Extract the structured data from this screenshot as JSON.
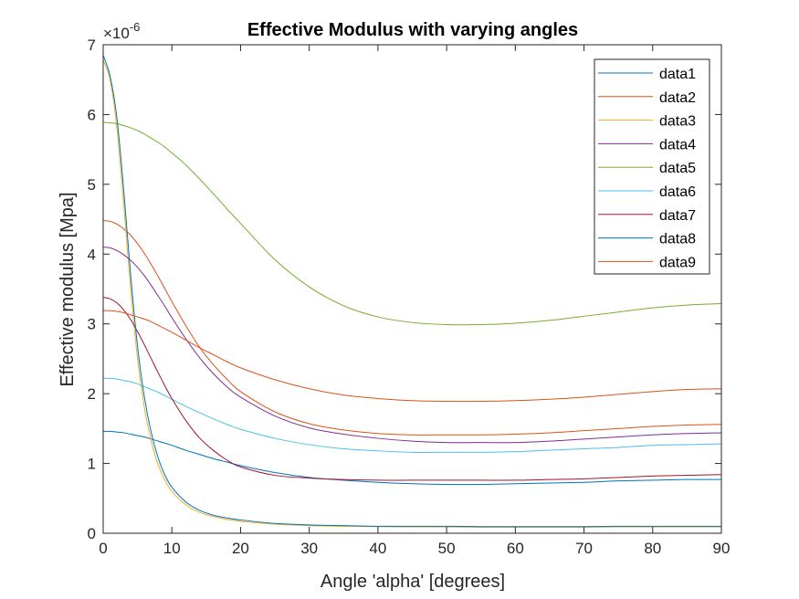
{
  "chart_data": {
    "type": "line",
    "title": "Effective Modulus with varying angles",
    "xlabel": "Angle 'alpha' [degrees]",
    "ylabel": "Effective modulus [Mpa]",
    "xlim": [
      0,
      90
    ],
    "ylim": [
      0,
      7
    ],
    "y_exponent": "×10",
    "y_exponent_power": "-6",
    "x_ticks": [
      "0",
      "10",
      "20",
      "30",
      "40",
      "50",
      "60",
      "70",
      "80",
      "90"
    ],
    "y_ticks": [
      "0",
      "1",
      "2",
      "3",
      "4",
      "5",
      "6",
      "7"
    ],
    "grid": false,
    "legend_position": "top-right",
    "x": [
      0,
      1,
      2,
      3,
      4,
      5,
      6,
      7,
      8,
      9,
      10,
      12,
      14,
      16,
      18,
      20,
      25,
      30,
      35,
      40,
      45,
      50,
      55,
      60,
      65,
      70,
      75,
      80,
      85,
      90
    ],
    "y_scale": 1e-06,
    "series": [
      {
        "name": "data1",
        "color": "#0072BD",
        "values": [
          1.46,
          1.46,
          1.45,
          1.44,
          1.42,
          1.4,
          1.38,
          1.35,
          1.32,
          1.29,
          1.26,
          1.19,
          1.13,
          1.07,
          1.02,
          0.97,
          0.87,
          0.8,
          0.76,
          0.73,
          0.71,
          0.7,
          0.7,
          0.71,
          0.72,
          0.73,
          0.75,
          0.76,
          0.77,
          0.77
        ]
      },
      {
        "name": "data2",
        "color": "#D95319",
        "values": [
          4.48,
          4.47,
          4.43,
          4.36,
          4.27,
          4.15,
          4.01,
          3.85,
          3.68,
          3.5,
          3.32,
          2.98,
          2.67,
          2.42,
          2.21,
          2.03,
          1.74,
          1.57,
          1.48,
          1.43,
          1.41,
          1.41,
          1.41,
          1.42,
          1.44,
          1.47,
          1.5,
          1.53,
          1.55,
          1.56
        ]
      },
      {
        "name": "data3",
        "color": "#EDB120",
        "values": [
          6.78,
          6.5,
          5.8,
          4.7,
          3.5,
          2.5,
          1.8,
          1.32,
          0.98,
          0.76,
          0.6,
          0.41,
          0.3,
          0.24,
          0.2,
          0.17,
          0.13,
          0.11,
          0.1,
          0.095,
          0.09,
          0.09,
          0.085,
          0.085,
          0.085,
          0.085,
          0.09,
          0.09,
          0.09,
          0.09
        ]
      },
      {
        "name": "data4",
        "color": "#7E2F8E",
        "values": [
          4.1,
          4.09,
          4.05,
          3.99,
          3.91,
          3.81,
          3.69,
          3.55,
          3.4,
          3.25,
          3.09,
          2.79,
          2.52,
          2.29,
          2.1,
          1.95,
          1.68,
          1.51,
          1.42,
          1.36,
          1.32,
          1.3,
          1.3,
          1.3,
          1.32,
          1.35,
          1.38,
          1.41,
          1.43,
          1.44
        ]
      },
      {
        "name": "data5",
        "color": "#77AC30",
        "values": [
          5.89,
          5.88,
          5.87,
          5.84,
          5.81,
          5.77,
          5.72,
          5.66,
          5.6,
          5.53,
          5.45,
          5.28,
          5.08,
          4.87,
          4.65,
          4.44,
          3.92,
          3.53,
          3.26,
          3.1,
          3.02,
          2.99,
          2.99,
          3.01,
          3.05,
          3.11,
          3.17,
          3.23,
          3.27,
          3.29
        ]
      },
      {
        "name": "data6",
        "color": "#4DBEEE",
        "values": [
          2.22,
          2.22,
          2.21,
          2.19,
          2.17,
          2.14,
          2.1,
          2.06,
          2.02,
          1.97,
          1.92,
          1.82,
          1.73,
          1.64,
          1.56,
          1.49,
          1.36,
          1.27,
          1.21,
          1.18,
          1.16,
          1.16,
          1.16,
          1.17,
          1.19,
          1.21,
          1.23,
          1.26,
          1.27,
          1.28
        ]
      },
      {
        "name": "data7",
        "color": "#A2142F",
        "values": [
          3.38,
          3.36,
          3.3,
          3.2,
          3.06,
          2.89,
          2.7,
          2.5,
          2.3,
          2.11,
          1.93,
          1.62,
          1.37,
          1.19,
          1.05,
          0.95,
          0.83,
          0.79,
          0.77,
          0.76,
          0.76,
          0.76,
          0.76,
          0.76,
          0.77,
          0.78,
          0.8,
          0.82,
          0.83,
          0.84
        ]
      },
      {
        "name": "data8",
        "color": "#0072BD",
        "values": [
          6.85,
          6.55,
          5.95,
          4.9,
          3.7,
          2.68,
          1.95,
          1.44,
          1.08,
          0.83,
          0.66,
          0.45,
          0.33,
          0.26,
          0.22,
          0.19,
          0.14,
          0.12,
          0.11,
          0.1,
          0.1,
          0.1,
          0.095,
          0.095,
          0.095,
          0.095,
          0.1,
          0.1,
          0.1,
          0.1
        ]
      },
      {
        "name": "data9",
        "color": "#D95319",
        "values": [
          3.19,
          3.19,
          3.18,
          3.16,
          3.13,
          3.1,
          3.07,
          3.03,
          2.98,
          2.93,
          2.88,
          2.77,
          2.66,
          2.56,
          2.46,
          2.37,
          2.2,
          2.07,
          1.98,
          1.93,
          1.9,
          1.89,
          1.89,
          1.9,
          1.92,
          1.95,
          1.99,
          2.03,
          2.06,
          2.07
        ]
      }
    ]
  }
}
